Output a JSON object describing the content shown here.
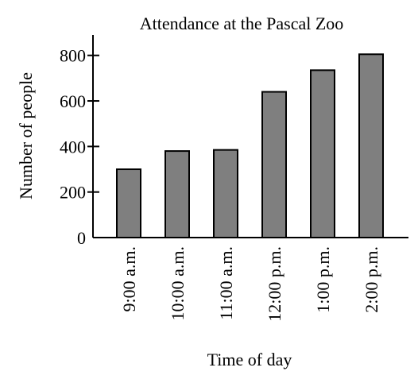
{
  "chart_data": {
    "type": "bar",
    "title": "Attendance at the Pascal Zoo",
    "xlabel": "Time of day",
    "ylabel": "Number of people",
    "categories": [
      "9:00 a.m.",
      "10:00 a.m.",
      "11:00 a.m.",
      "12:00 p.m.",
      "1:00 p.m.",
      "2:00 p.m."
    ],
    "values": [
      300,
      380,
      385,
      640,
      735,
      805
    ],
    "yticks": [
      0,
      200,
      400,
      600,
      800
    ],
    "ylim": [
      0,
      860
    ],
    "grid": false,
    "legend": "none",
    "bar_color": "#7f7f7f",
    "bar_stroke": "#000000"
  }
}
